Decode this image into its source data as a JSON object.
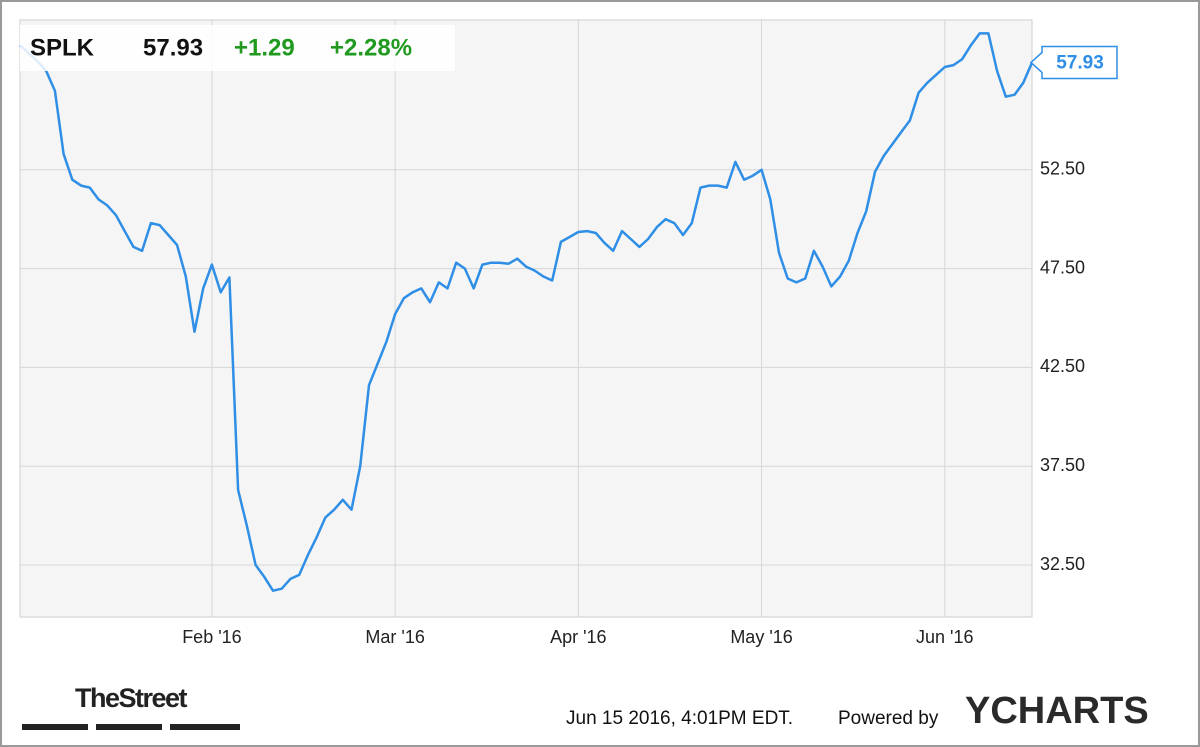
{
  "chart_data": {
    "type": "line",
    "header": {
      "ticker": "SPLK",
      "price": "57.93",
      "change": "+1.29",
      "change_pct": "+2.28%"
    },
    "categories": [
      null,
      null,
      null,
      null,
      null,
      null,
      null,
      null,
      null,
      null,
      null,
      null,
      null,
      null,
      null,
      null,
      null,
      null,
      null,
      null,
      null,
      null,
      "Feb '16",
      null,
      null,
      null,
      null,
      null,
      null,
      null,
      null,
      null,
      null,
      null,
      null,
      null,
      null,
      null,
      null,
      null,
      null,
      null,
      null,
      "Mar '16",
      null,
      null,
      null,
      null,
      null,
      null,
      null,
      null,
      null,
      null,
      null,
      null,
      null,
      null,
      null,
      null,
      null,
      null,
      null,
      null,
      "Apr '16",
      null,
      null,
      null,
      null,
      null,
      null,
      null,
      null,
      null,
      null,
      null,
      null,
      null,
      null,
      null,
      null,
      null,
      null,
      null,
      null,
      "May '16",
      null,
      null,
      null,
      null,
      null,
      null,
      null,
      null,
      null,
      null,
      null,
      null,
      null,
      null,
      null,
      null,
      null,
      null,
      null,
      null,
      "Jun '16",
      null,
      null,
      null,
      null,
      null,
      null,
      null,
      null,
      null,
      null
    ],
    "series": [
      {
        "name": "SPLK",
        "color": "#2f8ee5",
        "values": [
          58.8,
          58.4,
          58.0,
          57.5,
          56.5,
          53.3,
          52.0,
          51.7,
          51.6,
          51.0,
          50.7,
          50.2,
          49.4,
          48.6,
          48.4,
          49.8,
          49.7,
          49.2,
          48.7,
          47.1,
          44.3,
          46.5,
          47.7,
          46.3,
          47.05,
          36.3,
          34.5,
          32.5,
          31.9,
          31.2,
          31.3,
          31.8,
          32.0,
          33.0,
          33.9,
          34.9,
          35.3,
          35.8,
          35.3,
          37.5,
          41.6,
          42.7,
          43.8,
          45.2,
          46.0,
          46.3,
          46.5,
          45.8,
          46.8,
          46.5,
          47.8,
          47.5,
          46.5,
          47.7,
          47.8,
          47.8,
          47.75,
          48.0,
          47.6,
          47.4,
          47.1,
          46.9,
          48.85,
          49.1,
          49.35,
          49.4,
          49.3,
          48.8,
          48.4,
          49.4,
          49.0,
          48.6,
          49.0,
          49.6,
          50.0,
          49.8,
          49.2,
          49.8,
          51.6,
          51.7,
          51.7,
          51.6,
          52.9,
          52.0,
          52.2,
          52.5,
          51.0,
          48.3,
          47.0,
          46.8,
          47.0,
          48.4,
          47.6,
          46.6,
          47.1,
          47.9,
          49.3,
          50.4,
          52.4,
          53.2,
          53.8,
          54.4,
          55.0,
          56.4,
          56.9,
          57.3,
          57.7,
          57.8,
          58.1,
          58.8,
          59.4,
          59.4,
          57.5,
          56.2,
          56.3,
          56.9,
          57.93
        ]
      }
    ],
    "ylim": [
      29.87,
      60.08
    ],
    "yticks": [
      {
        "value": 32.5,
        "label": "32.50"
      },
      {
        "value": 37.5,
        "label": "37.50"
      },
      {
        "value": 42.5,
        "label": "42.50"
      },
      {
        "value": 47.5,
        "label": "47.50"
      },
      {
        "value": 52.5,
        "label": "52.50"
      }
    ],
    "grid": true
  },
  "footer": {
    "source_logo": "TheStreet",
    "timestamp": "Jun 15 2016, 4:01PM EDT.",
    "powered_by": "Powered by",
    "brand": "YCHARTS"
  }
}
